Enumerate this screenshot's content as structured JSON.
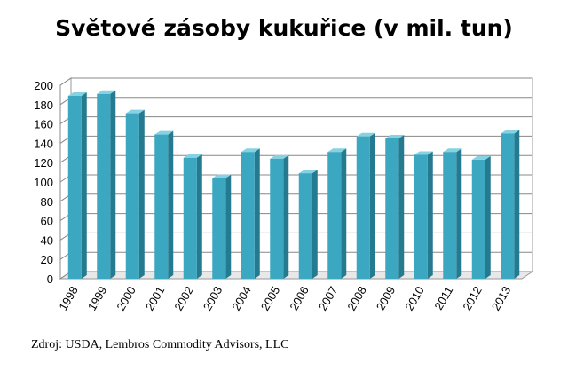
{
  "chart_data": {
    "type": "bar",
    "title": "Světové zásoby kukuřice (v mil. tun)",
    "source": "Zdroj: USDA, Lembros Commodity Advisors, LLC",
    "categories": [
      "1998",
      "1999",
      "2000",
      "2001",
      "2002",
      "2003",
      "2004",
      "2005",
      "2006",
      "2007",
      "2008",
      "2009",
      "2010",
      "2011",
      "2012",
      "2013"
    ],
    "values": [
      189,
      191,
      171,
      149,
      125,
      104,
      131,
      124,
      109,
      131,
      147,
      145,
      128,
      131,
      123,
      150
    ],
    "color": "#3ba7c1",
    "ylim": [
      0,
      200
    ],
    "yticks": [
      0,
      20,
      40,
      60,
      80,
      100,
      120,
      140,
      160,
      180,
      200
    ],
    "grid": true
  }
}
